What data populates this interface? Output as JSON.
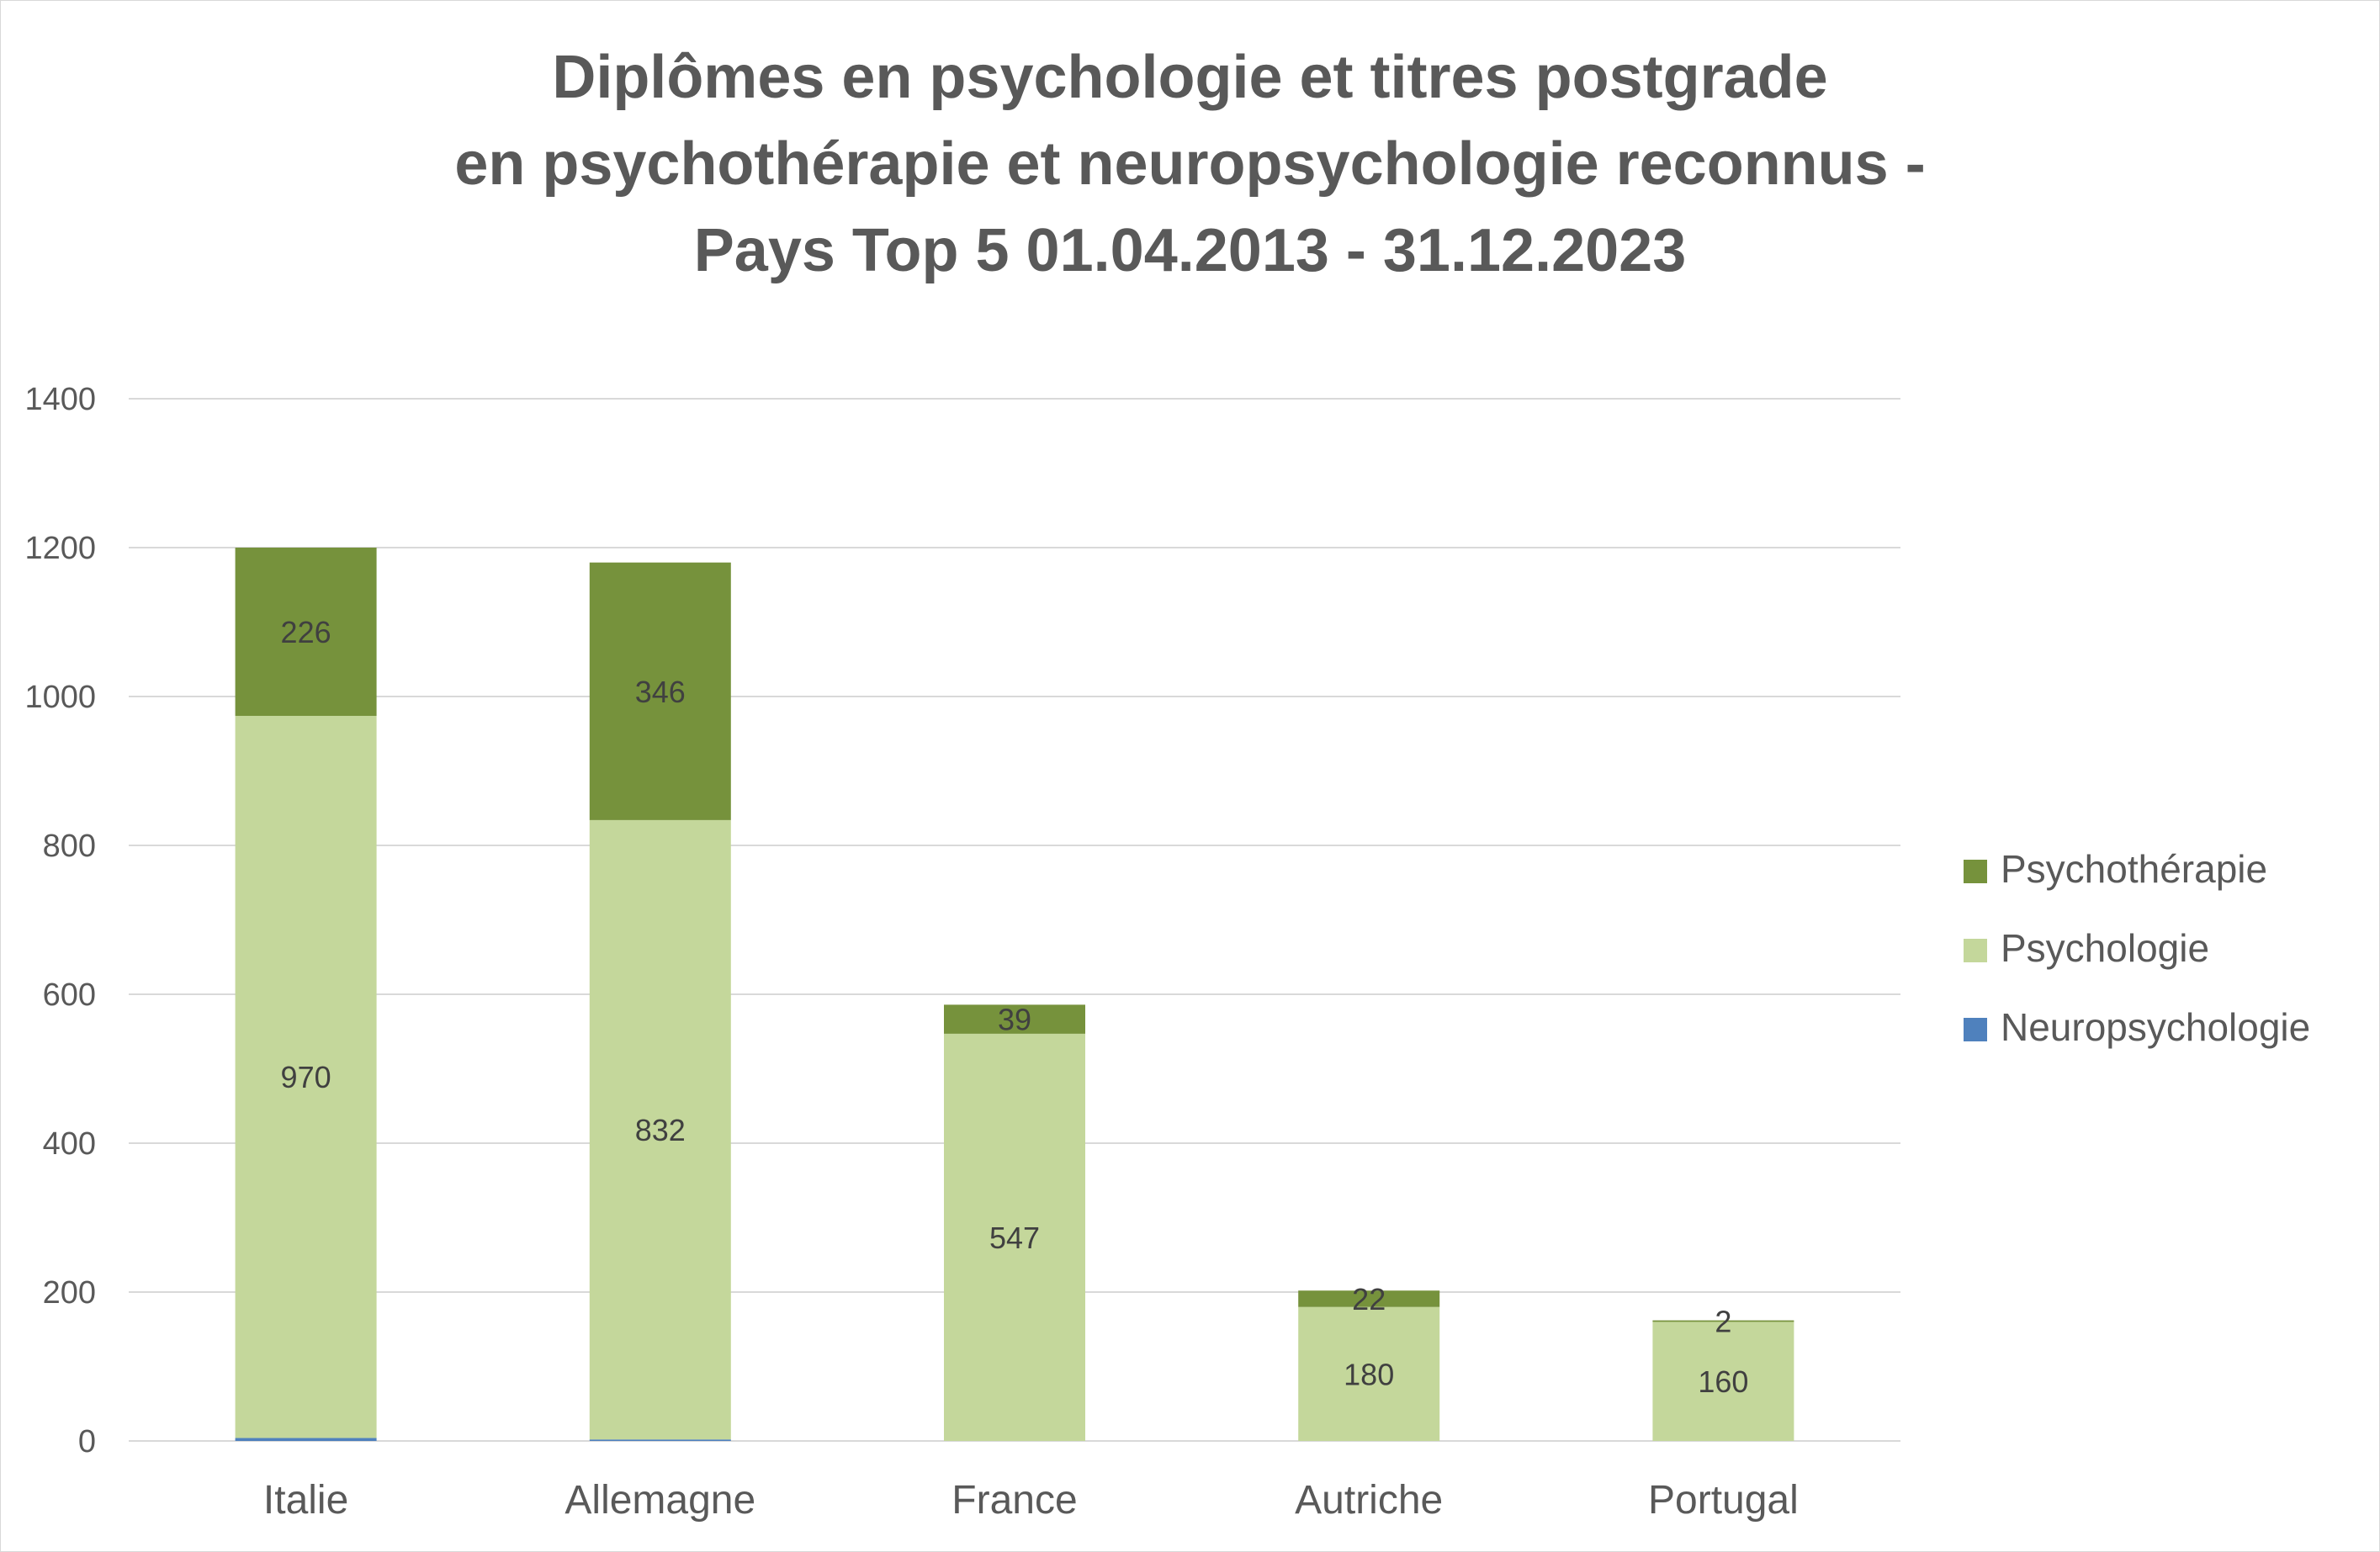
{
  "chart_data": {
    "type": "bar",
    "stacked": true,
    "title": [
      "Diplômes en psychologie et titres postgrade",
      "en psychothérapie et neuropsychologie reconnus -",
      "Pays Top 5 01.04.2013 - 31.12.2023"
    ],
    "categories": [
      "Italie",
      "Allemagne",
      "France",
      "Autriche",
      "Portugal"
    ],
    "series": [
      {
        "name": "Neuropsychologie",
        "color": "#4f81bd",
        "values": [
          4,
          2,
          0,
          0,
          0
        ],
        "labels_shown": false
      },
      {
        "name": "Psychologie",
        "color": "#c4d79b",
        "values": [
          970,
          832,
          547,
          180,
          160
        ],
        "labels_shown": true
      },
      {
        "name": "Psychothérapie",
        "color": "#76923c",
        "values": [
          226,
          346,
          39,
          22,
          2
        ],
        "labels_shown": true
      }
    ],
    "y_ticks": [
      "0",
      "200",
      "400",
      "600",
      "800",
      "1000",
      "1200",
      "1400"
    ],
    "ylim": [
      0,
      1400
    ],
    "grid": true,
    "legend": {
      "position": "right",
      "order": [
        "Psychothérapie",
        "Psychologie",
        "Neuropsychologie"
      ]
    }
  }
}
